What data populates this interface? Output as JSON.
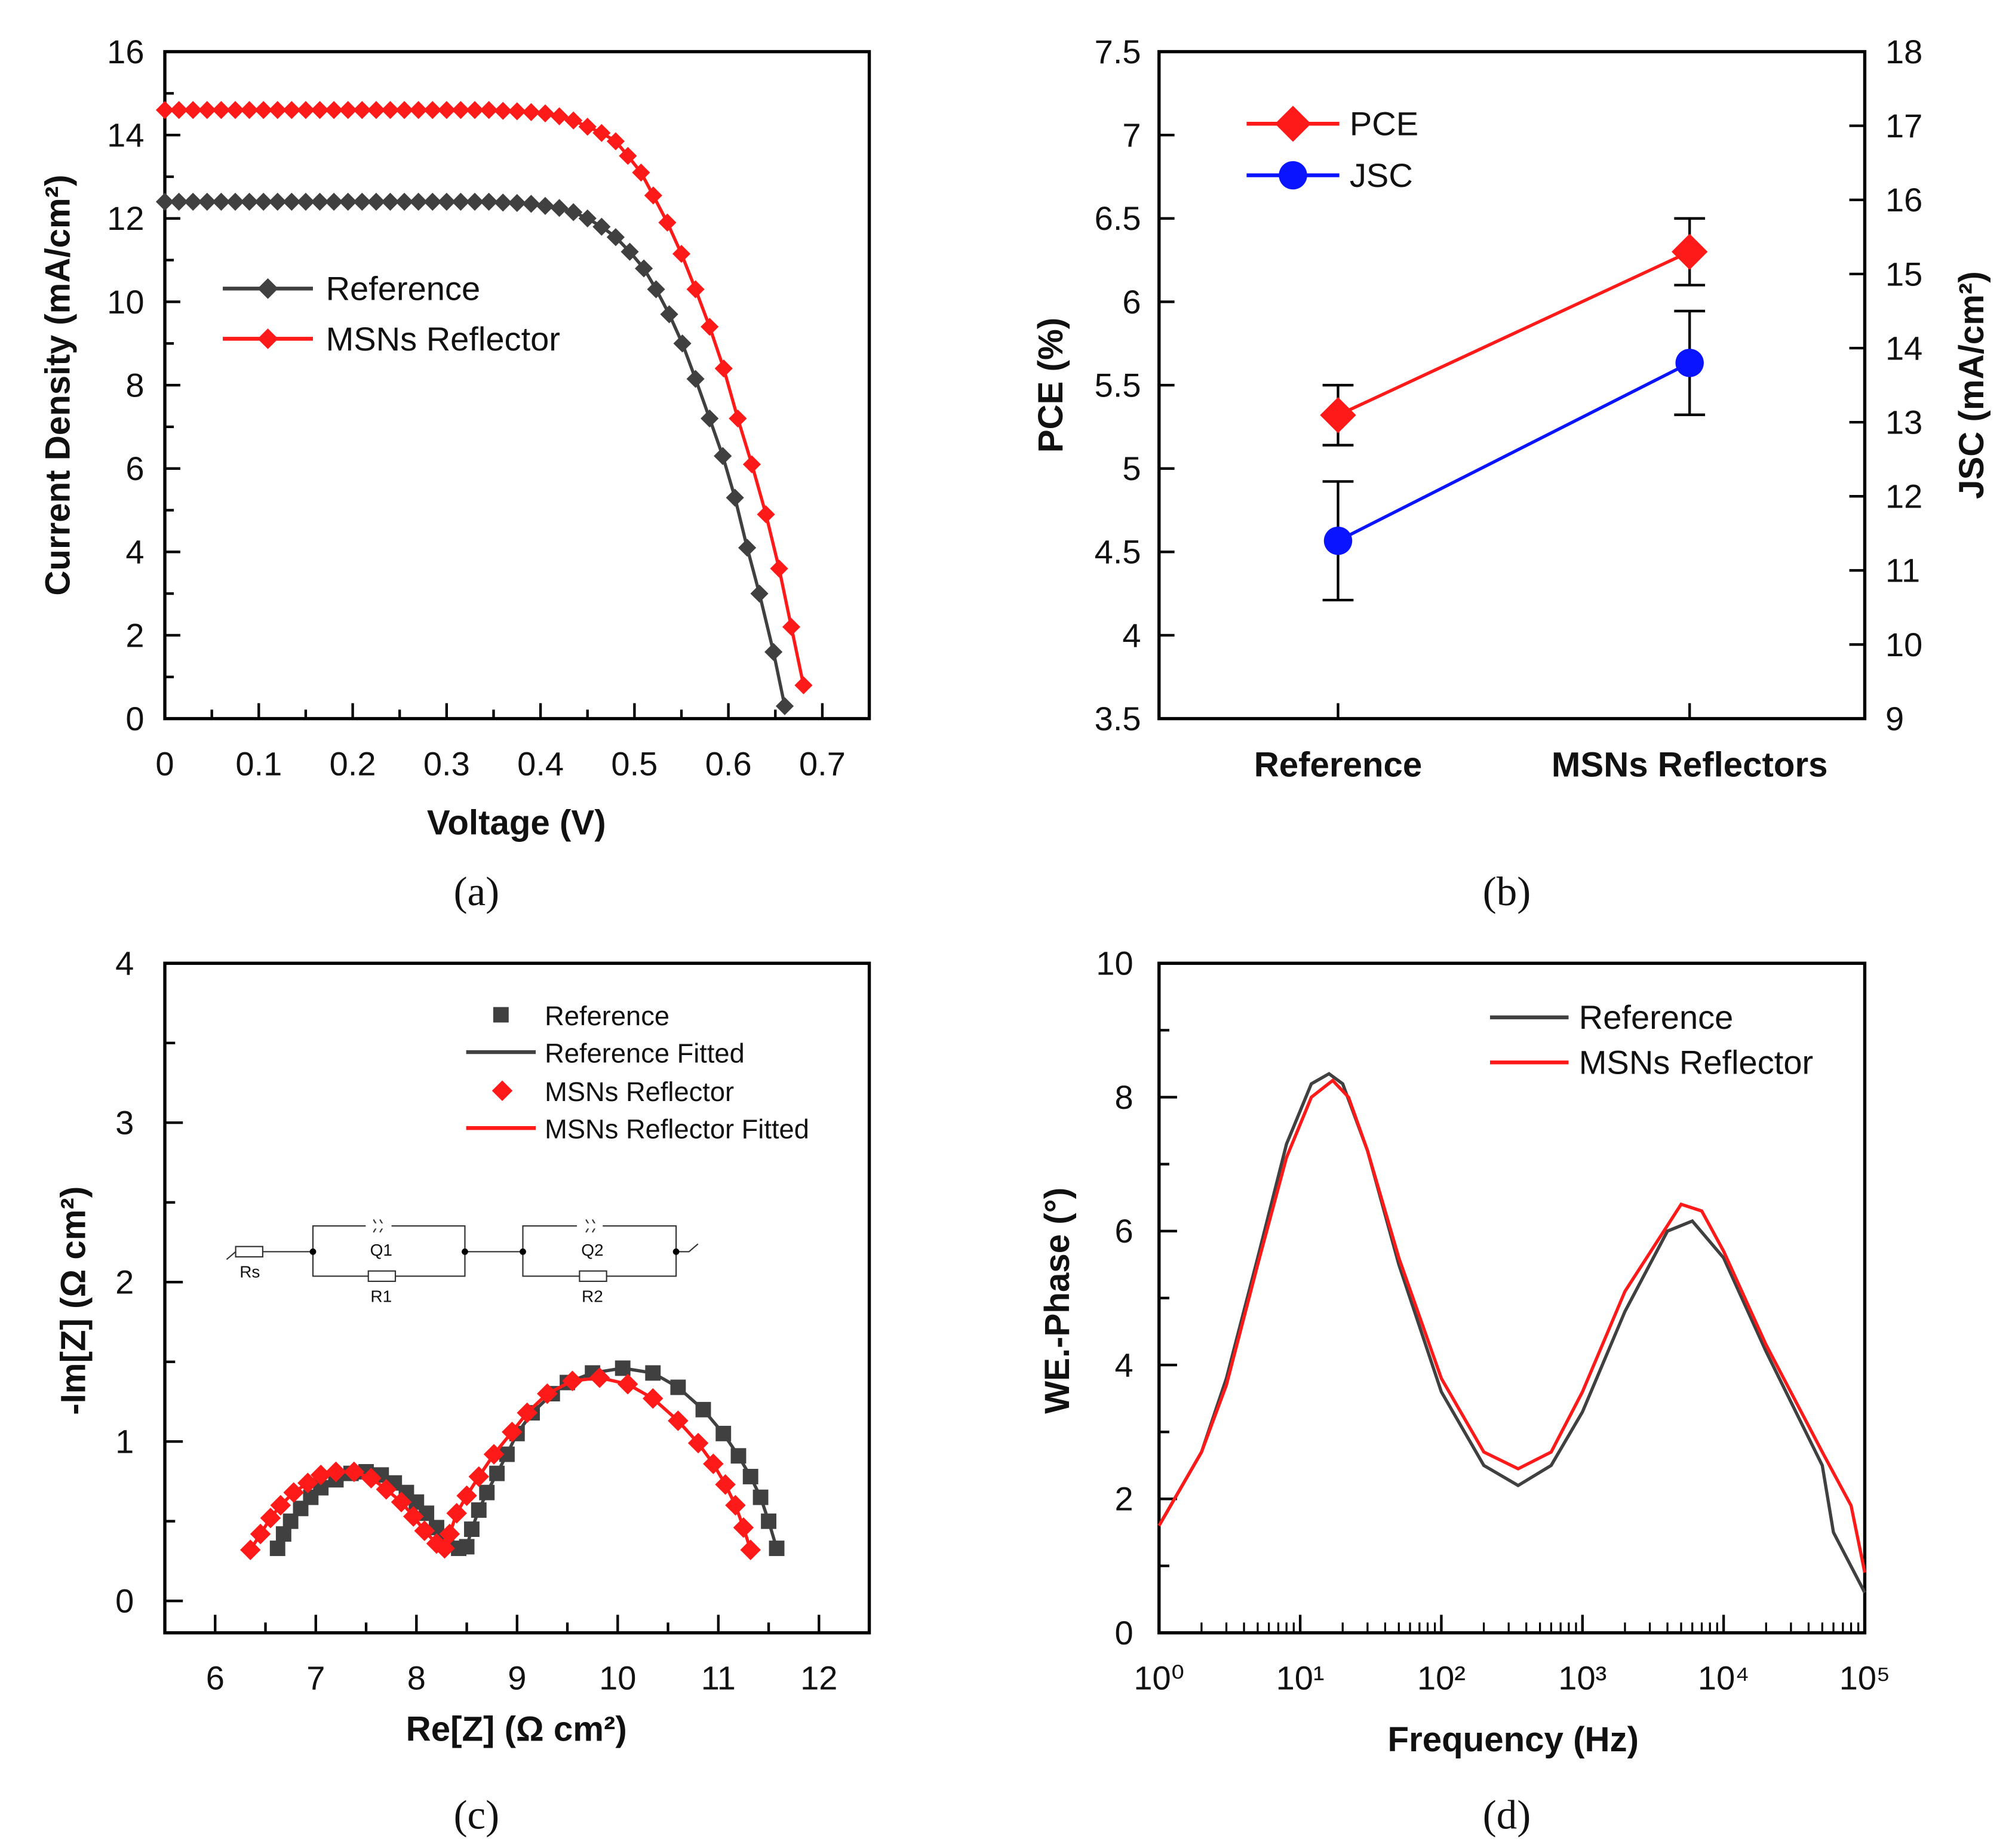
{
  "colors": {
    "reference": "#404040",
    "msns": "#ff1a1a",
    "jsc": "#0a14ff",
    "axis": "#000000"
  },
  "captions": {
    "a": "(a)",
    "b": "(b)",
    "c": "(c)",
    "d": "(d)"
  },
  "chart_data": [
    {
      "id": "a",
      "type": "line",
      "xlabel": "Voltage (V)",
      "ylabel": "Current Density (mA/cm²)",
      "xlim": [
        0,
        0.75
      ],
      "ylim": [
        0,
        16
      ],
      "xticks": [
        "0",
        "0.1",
        "0.2",
        "0.3",
        "0.4",
        "0.5",
        "0.6",
        "0.7"
      ],
      "yticks": [
        "0",
        "2",
        "4",
        "6",
        "8",
        "10",
        "12",
        "14",
        "16"
      ],
      "legend": {
        "placement": "center-left",
        "entries": [
          "Reference",
          "MSNs Reflector"
        ]
      },
      "series": [
        {
          "name": "Reference",
          "marker": "diamond",
          "points": [
            [
              0,
              12.4
            ],
            [
              0.015,
              12.4
            ],
            [
              0.03,
              12.4
            ],
            [
              0.045,
              12.4
            ],
            [
              0.06,
              12.4
            ],
            [
              0.075,
              12.4
            ],
            [
              0.09,
              12.4
            ],
            [
              0.105,
              12.4
            ],
            [
              0.12,
              12.4
            ],
            [
              0.135,
              12.4
            ],
            [
              0.15,
              12.4
            ],
            [
              0.165,
              12.4
            ],
            [
              0.18,
              12.4
            ],
            [
              0.195,
              12.4
            ],
            [
              0.21,
              12.4
            ],
            [
              0.225,
              12.4
            ],
            [
              0.24,
              12.4
            ],
            [
              0.255,
              12.4
            ],
            [
              0.27,
              12.4
            ],
            [
              0.285,
              12.4
            ],
            [
              0.3,
              12.4
            ],
            [
              0.315,
              12.4
            ],
            [
              0.33,
              12.4
            ],
            [
              0.345,
              12.4
            ],
            [
              0.36,
              12.38
            ],
            [
              0.375,
              12.37
            ],
            [
              0.39,
              12.35
            ],
            [
              0.405,
              12.3
            ],
            [
              0.42,
              12.25
            ],
            [
              0.435,
              12.15
            ],
            [
              0.45,
              12.0
            ],
            [
              0.465,
              11.8
            ],
            [
              0.48,
              11.55
            ],
            [
              0.495,
              11.2
            ],
            [
              0.51,
              10.8
            ],
            [
              0.523,
              10.3
            ],
            [
              0.537,
              9.7
            ],
            [
              0.551,
              9.0
            ],
            [
              0.565,
              8.15
            ],
            [
              0.58,
              7.2
            ],
            [
              0.594,
              6.3
            ],
            [
              0.607,
              5.3
            ],
            [
              0.62,
              4.1
            ],
            [
              0.633,
              3.0
            ],
            [
              0.648,
              1.6
            ],
            [
              0.66,
              0.3
            ]
          ]
        },
        {
          "name": "MSNs Reflector",
          "marker": "diamond",
          "points": [
            [
              0,
              14.6
            ],
            [
              0.015,
              14.6
            ],
            [
              0.03,
              14.6
            ],
            [
              0.045,
              14.6
            ],
            [
              0.06,
              14.6
            ],
            [
              0.075,
              14.6
            ],
            [
              0.09,
              14.6
            ],
            [
              0.105,
              14.6
            ],
            [
              0.12,
              14.6
            ],
            [
              0.135,
              14.6
            ],
            [
              0.15,
              14.6
            ],
            [
              0.165,
              14.6
            ],
            [
              0.18,
              14.6
            ],
            [
              0.195,
              14.6
            ],
            [
              0.21,
              14.6
            ],
            [
              0.225,
              14.6
            ],
            [
              0.24,
              14.6
            ],
            [
              0.255,
              14.6
            ],
            [
              0.27,
              14.6
            ],
            [
              0.285,
              14.6
            ],
            [
              0.3,
              14.6
            ],
            [
              0.315,
              14.6
            ],
            [
              0.33,
              14.6
            ],
            [
              0.345,
              14.6
            ],
            [
              0.36,
              14.58
            ],
            [
              0.375,
              14.57
            ],
            [
              0.39,
              14.55
            ],
            [
              0.405,
              14.52
            ],
            [
              0.42,
              14.45
            ],
            [
              0.435,
              14.35
            ],
            [
              0.45,
              14.2
            ],
            [
              0.465,
              14.05
            ],
            [
              0.48,
              13.85
            ],
            [
              0.493,
              13.5
            ],
            [
              0.507,
              13.1
            ],
            [
              0.52,
              12.55
            ],
            [
              0.535,
              11.9
            ],
            [
              0.55,
              11.15
            ],
            [
              0.565,
              10.3
            ],
            [
              0.58,
              9.4
            ],
            [
              0.595,
              8.4
            ],
            [
              0.61,
              7.2
            ],
            [
              0.625,
              6.1
            ],
            [
              0.64,
              4.9
            ],
            [
              0.654,
              3.6
            ],
            [
              0.667,
              2.2
            ],
            [
              0.68,
              0.8
            ]
          ]
        }
      ]
    },
    {
      "id": "b",
      "type": "line",
      "xlabel": "",
      "ylabel": "PCE (%)",
      "y2label": "JSC (mA/cm²)",
      "categories": [
        "Reference",
        "MSNs Reflectors"
      ],
      "ylim": [
        3.5,
        7.5
      ],
      "y2lim": [
        9,
        18
      ],
      "yticks": [
        "3.5",
        "4",
        "4.5",
        "5",
        "5.5",
        "6",
        "6.5",
        "7",
        "7.5"
      ],
      "y2ticks": [
        "9",
        "10",
        "11",
        "12",
        "13",
        "14",
        "15",
        "16",
        "17",
        "18"
      ],
      "legend": {
        "placement": "top-left",
        "entries": [
          "PCE",
          "JSC"
        ]
      },
      "series": [
        {
          "name": "PCE",
          "axis": "left",
          "marker": "diamond",
          "values": [
            5.32,
            6.3
          ],
          "errors": [
            0.18,
            0.2
          ]
        },
        {
          "name": "JSC",
          "axis": "right",
          "marker": "circle",
          "values": [
            11.4,
            13.8
          ],
          "errors": [
            0.8,
            0.7
          ]
        }
      ]
    },
    {
      "id": "c",
      "type": "scatter",
      "xlabel": "Re[Z] (Ω cm²)",
      "ylabel": "-Im[Z] (Ω cm²)",
      "xlim": [
        5.5,
        12.5
      ],
      "ylim": [
        -0.2,
        4
      ],
      "xticks": [
        "6",
        "7",
        "8",
        "9",
        "10",
        "11",
        "12"
      ],
      "yticks": [
        "0",
        "1",
        "2",
        "3",
        "4"
      ],
      "legend": {
        "placement": "top-right",
        "entries": [
          "Reference",
          "Reference Fitted",
          "MSNs Reflector",
          "MSNs Reflector Fitted"
        ]
      },
      "circuit": {
        "labels": [
          "Rs",
          "Q1",
          "R1",
          "Q2",
          "R2"
        ]
      },
      "series": [
        {
          "name": "Reference",
          "marker": "square",
          "points": [
            [
              6.62,
              0.33
            ],
            [
              6.68,
              0.42
            ],
            [
              6.75,
              0.5
            ],
            [
              6.85,
              0.58
            ],
            [
              6.95,
              0.65
            ],
            [
              7.05,
              0.71
            ],
            [
              7.2,
              0.76
            ],
            [
              7.35,
              0.8
            ],
            [
              7.5,
              0.81
            ],
            [
              7.65,
              0.79
            ],
            [
              7.78,
              0.74
            ],
            [
              7.9,
              0.68
            ],
            [
              8.0,
              0.62
            ],
            [
              8.1,
              0.55
            ],
            [
              8.2,
              0.46
            ],
            [
              8.3,
              0.38
            ],
            [
              8.42,
              0.33
            ],
            [
              8.5,
              0.34
            ],
            [
              8.55,
              0.45
            ],
            [
              8.62,
              0.57
            ],
            [
              8.7,
              0.68
            ],
            [
              8.8,
              0.8
            ],
            [
              8.9,
              0.92
            ],
            [
              9.0,
              1.05
            ],
            [
              9.15,
              1.18
            ],
            [
              9.35,
              1.3
            ],
            [
              9.5,
              1.37
            ],
            [
              9.75,
              1.43
            ],
            [
              10.05,
              1.46
            ],
            [
              10.35,
              1.43
            ],
            [
              10.6,
              1.34
            ],
            [
              10.85,
              1.2
            ],
            [
              11.05,
              1.05
            ],
            [
              11.2,
              0.91
            ],
            [
              11.32,
              0.78
            ],
            [
              11.42,
              0.65
            ],
            [
              11.5,
              0.5
            ],
            [
              11.58,
              0.33
            ]
          ]
        },
        {
          "name": "MSNs Reflector",
          "marker": "diamond",
          "points": [
            [
              6.35,
              0.32
            ],
            [
              6.45,
              0.42
            ],
            [
              6.55,
              0.52
            ],
            [
              6.65,
              0.6
            ],
            [
              6.78,
              0.68
            ],
            [
              6.92,
              0.74
            ],
            [
              7.05,
              0.79
            ],
            [
              7.2,
              0.81
            ],
            [
              7.38,
              0.81
            ],
            [
              7.55,
              0.77
            ],
            [
              7.7,
              0.7
            ],
            [
              7.85,
              0.62
            ],
            [
              7.97,
              0.53
            ],
            [
              8.08,
              0.44
            ],
            [
              8.2,
              0.36
            ],
            [
              8.28,
              0.33
            ],
            [
              8.33,
              0.42
            ],
            [
              8.4,
              0.55
            ],
            [
              8.5,
              0.66
            ],
            [
              8.62,
              0.78
            ],
            [
              8.77,
              0.92
            ],
            [
              8.95,
              1.06
            ],
            [
              9.1,
              1.18
            ],
            [
              9.3,
              1.3
            ],
            [
              9.55,
              1.38
            ],
            [
              9.82,
              1.4
            ],
            [
              10.1,
              1.36
            ],
            [
              10.35,
              1.27
            ],
            [
              10.6,
              1.13
            ],
            [
              10.8,
              0.99
            ],
            [
              10.95,
              0.86
            ],
            [
              11.07,
              0.73
            ],
            [
              11.17,
              0.6
            ],
            [
              11.25,
              0.46
            ],
            [
              11.32,
              0.32
            ]
          ]
        }
      ]
    },
    {
      "id": "d",
      "type": "line",
      "xlabel": "Frequency (Hz)",
      "ylabel": "WE.-Phase (°)",
      "xscale": "log",
      "xlim": [
        1,
        100000
      ],
      "ylim": [
        0,
        10
      ],
      "xticks": [
        "10⁰",
        "10¹",
        "10²",
        "10³",
        "10⁴",
        "10⁵"
      ],
      "yticks": [
        "0",
        "2",
        "4",
        "6",
        "8",
        "10"
      ],
      "legend": {
        "placement": "top-right",
        "entries": [
          "Reference",
          "MSNs Reflector"
        ]
      },
      "series": [
        {
          "name": "Reference",
          "points": [
            [
              1,
              1.6
            ],
            [
              2,
              2.7
            ],
            [
              3,
              3.8
            ],
            [
              5,
              5.6
            ],
            [
              8,
              7.3
            ],
            [
              12,
              8.2
            ],
            [
              16,
              8.35
            ],
            [
              20,
              8.2
            ],
            [
              30,
              7.2
            ],
            [
              50,
              5.5
            ],
            [
              100,
              3.6
            ],
            [
              200,
              2.5
            ],
            [
              350,
              2.2
            ],
            [
              600,
              2.5
            ],
            [
              1000,
              3.3
            ],
            [
              2000,
              4.8
            ],
            [
              4000,
              6.0
            ],
            [
              6000,
              6.15
            ],
            [
              10000,
              5.6
            ],
            [
              20000,
              4.2
            ],
            [
              50000,
              2.5
            ],
            [
              60000,
              1.5
            ],
            [
              100000,
              0.6
            ]
          ]
        },
        {
          "name": "MSNs Reflector",
          "points": [
            [
              1,
              1.6
            ],
            [
              2,
              2.7
            ],
            [
              3,
              3.7
            ],
            [
              5,
              5.5
            ],
            [
              8,
              7.1
            ],
            [
              12,
              8.0
            ],
            [
              17,
              8.25
            ],
            [
              22,
              8.0
            ],
            [
              30,
              7.2
            ],
            [
              50,
              5.6
            ],
            [
              100,
              3.8
            ],
            [
              200,
              2.7
            ],
            [
              350,
              2.45
            ],
            [
              600,
              2.7
            ],
            [
              1000,
              3.6
            ],
            [
              2000,
              5.1
            ],
            [
              5000,
              6.4
            ],
            [
              7000,
              6.3
            ],
            [
              10000,
              5.7
            ],
            [
              20000,
              4.3
            ],
            [
              50000,
              2.7
            ],
            [
              80000,
              1.9
            ],
            [
              100000,
              0.9
            ]
          ]
        }
      ]
    }
  ]
}
